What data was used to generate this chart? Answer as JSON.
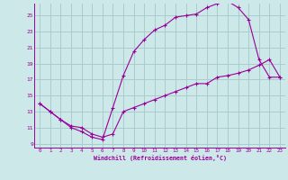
{
  "xlabel": "Windchill (Refroidissement éolien,°C)",
  "bg_color": "#cce8e8",
  "grid_color": "#aacccc",
  "line_color": "#990099",
  "xlim": [
    -0.5,
    23.5
  ],
  "ylim": [
    8.5,
    26.5
  ],
  "xticks": [
    0,
    1,
    2,
    3,
    4,
    5,
    6,
    7,
    8,
    9,
    10,
    11,
    12,
    13,
    14,
    15,
    16,
    17,
    18,
    19,
    20,
    21,
    22,
    23
  ],
  "yticks": [
    9,
    11,
    13,
    15,
    17,
    19,
    21,
    23,
    25
  ],
  "line1_x": [
    0,
    1,
    2,
    3,
    4,
    5,
    6,
    7,
    8,
    9,
    10,
    11,
    12,
    13,
    14,
    15,
    16,
    17,
    18,
    19,
    20,
    21,
    22,
    23
  ],
  "line1_y": [
    14,
    13,
    12,
    11,
    10.5,
    9.8,
    9.5,
    13.5,
    17.5,
    20.5,
    22.0,
    23.2,
    23.8,
    24.8,
    25.0,
    25.2,
    26.0,
    26.5,
    26.8,
    26.0,
    24.5,
    19.5,
    17.3,
    17.3
  ],
  "line2_x": [
    0,
    1,
    2,
    3,
    4,
    5,
    6,
    7,
    8,
    9,
    10,
    11,
    12,
    13,
    14,
    15,
    16,
    17,
    18,
    19,
    20,
    21,
    22,
    23
  ],
  "line2_y": [
    14,
    13,
    12,
    11.2,
    11.0,
    10.2,
    9.8,
    10.2,
    13.0,
    13.5,
    14.0,
    14.5,
    15.0,
    15.5,
    16.0,
    16.5,
    16.5,
    17.3,
    17.5,
    17.8,
    18.2,
    18.8,
    19.5,
    17.3
  ]
}
